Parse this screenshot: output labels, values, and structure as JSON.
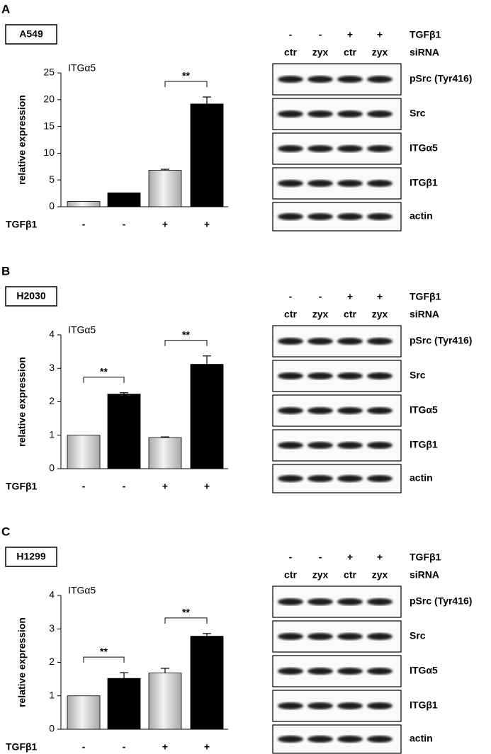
{
  "panel_letters": [
    "A",
    "B",
    "C"
  ],
  "chart_data": [
    {
      "type": "bar",
      "cell_line": "A549",
      "title": "ITGα5",
      "ylabel": "relative expression",
      "x_row_label": "TGFβ1",
      "categories": [
        "-",
        "-",
        "+",
        "+"
      ],
      "values": [
        1,
        2.6,
        6.8,
        19.2
      ],
      "errors": [
        0,
        0,
        0.2,
        1.3
      ],
      "colors": [
        "#a8a8a8",
        "#000000",
        "#a8a8a8",
        "#000000"
      ],
      "ylim": [
        0,
        25
      ],
      "yticks": [
        0,
        5,
        10,
        15,
        20,
        25
      ],
      "annotations": [
        {
          "label": "**",
          "between": [
            2,
            3
          ]
        }
      ]
    },
    {
      "type": "bar",
      "cell_line": "H2030",
      "title": "ITGα5",
      "ylabel": "relative expression",
      "x_row_label": "TGFβ1",
      "categories": [
        "-",
        "-",
        "+",
        "+"
      ],
      "values": [
        1,
        2.23,
        0.93,
        3.12
      ],
      "errors": [
        0,
        0.04,
        0.02,
        0.25
      ],
      "colors": [
        "#a8a8a8",
        "#000000",
        "#a8a8a8",
        "#000000"
      ],
      "ylim": [
        0,
        4
      ],
      "yticks": [
        0,
        1,
        2,
        3,
        4
      ],
      "annotations": [
        {
          "label": "**",
          "between": [
            0,
            1
          ]
        },
        {
          "label": "**",
          "between": [
            2,
            3
          ]
        }
      ]
    },
    {
      "type": "bar",
      "cell_line": "H1299",
      "title": "ITGα5",
      "ylabel": "relative expression",
      "x_row_label": "TGFβ1",
      "categories": [
        "-",
        "-",
        "+",
        "+"
      ],
      "values": [
        1,
        1.52,
        1.68,
        2.78
      ],
      "errors": [
        0,
        0.17,
        0.14,
        0.08
      ],
      "colors": [
        "#a8a8a8",
        "#000000",
        "#a8a8a8",
        "#000000"
      ],
      "ylim": [
        0,
        4
      ],
      "yticks": [
        0,
        1,
        2,
        3,
        4
      ],
      "annotations": [
        {
          "label": "**",
          "between": [
            0,
            1
          ]
        },
        {
          "label": "**",
          "between": [
            2,
            3
          ]
        }
      ]
    }
  ],
  "blots": [
    {
      "treatments": [
        {
          "label": "TGFβ1",
          "lanes": [
            "-",
            "-",
            "+",
            "+"
          ]
        },
        {
          "label": "siRNA",
          "lanes": [
            "ctr",
            "zyx",
            "ctr",
            "zyx"
          ]
        }
      ],
      "bands": [
        "pSrc (Tyr416)",
        "Src",
        "ITGα5",
        "ITGβ1",
        "actin"
      ]
    },
    {
      "treatments": [
        {
          "label": "TGFβ1",
          "lanes": [
            "-",
            "-",
            "+",
            "+"
          ]
        },
        {
          "label": "siRNA",
          "lanes": [
            "ctr",
            "zyx",
            "ctr",
            "zyx"
          ]
        }
      ],
      "bands": [
        "pSrc (Tyr416)",
        "Src",
        "ITGα5",
        "ITGβ1",
        "actin"
      ]
    },
    {
      "treatments": [
        {
          "label": "TGFβ1",
          "lanes": [
            "-",
            "-",
            "+",
            "+"
          ]
        },
        {
          "label": "siRNA",
          "lanes": [
            "ctr",
            "zyx",
            "ctr",
            "zyx"
          ]
        }
      ],
      "bands": [
        "pSrc (Tyr416)",
        "Src",
        "ITGα5",
        "ITGβ1",
        "actin"
      ]
    }
  ]
}
